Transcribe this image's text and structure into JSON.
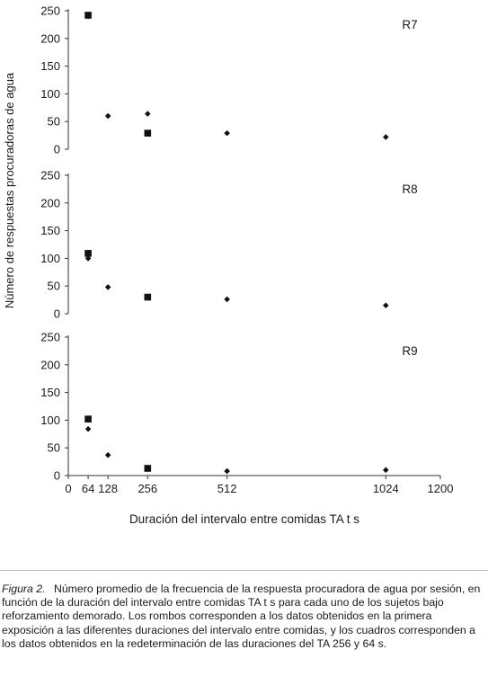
{
  "chart_data": {
    "type": "scatter",
    "ylabel": "Número de respuestas procuradoras de agua",
    "xlabel": "Duración del intervalo entre comidas TA t s",
    "x_ticks": [
      0,
      64,
      128,
      256,
      512,
      1024,
      1200
    ],
    "xlim": [
      0,
      1200
    ],
    "y_ticks": [
      0,
      50,
      100,
      150,
      200,
      250
    ],
    "ylim": [
      0,
      250
    ],
    "grid": false,
    "panels": [
      {
        "label": "R7",
        "series": [
          {
            "marker": "diamond",
            "points": [
              [
                64,
                240
              ],
              [
                128,
                60
              ],
              [
                256,
                64
              ],
              [
                512,
                29
              ],
              [
                1024,
                22
              ]
            ]
          },
          {
            "marker": "square",
            "points": [
              [
                64,
                242
              ],
              [
                256,
                29
              ]
            ]
          }
        ]
      },
      {
        "label": "R8",
        "series": [
          {
            "marker": "diamond",
            "points": [
              [
                64,
                100
              ],
              [
                128,
                48
              ],
              [
                256,
                31
              ],
              [
                512,
                26
              ],
              [
                1024,
                15
              ]
            ]
          },
          {
            "marker": "square",
            "points": [
              [
                64,
                109
              ],
              [
                256,
                30
              ]
            ]
          }
        ]
      },
      {
        "label": "R9",
        "series": [
          {
            "marker": "diamond",
            "points": [
              [
                64,
                84
              ],
              [
                128,
                37
              ],
              [
                256,
                12
              ],
              [
                512,
                8
              ],
              [
                1024,
                10
              ]
            ]
          },
          {
            "marker": "square",
            "points": [
              [
                64,
                102
              ],
              [
                256,
                13
              ]
            ]
          }
        ]
      }
    ]
  },
  "caption": {
    "label": "Figura 2.",
    "text": "Número promedio de la frecuencia de la respuesta procuradora de agua por sesión, en función de la duración del intervalo entre comidas TA t s para cada uno de los sujetos bajo reforzamiento demorado. Los rombos corresponden a los datos obtenidos en la primera exposición a las diferentes duraciones del intervalo entre comidas, y los cuadros corresponden a los datos obtenidos en la redeterminación de las duraciones del TA 256 y 64 s."
  },
  "colors": {
    "marker": "#111111",
    "axis": "#333333"
  }
}
